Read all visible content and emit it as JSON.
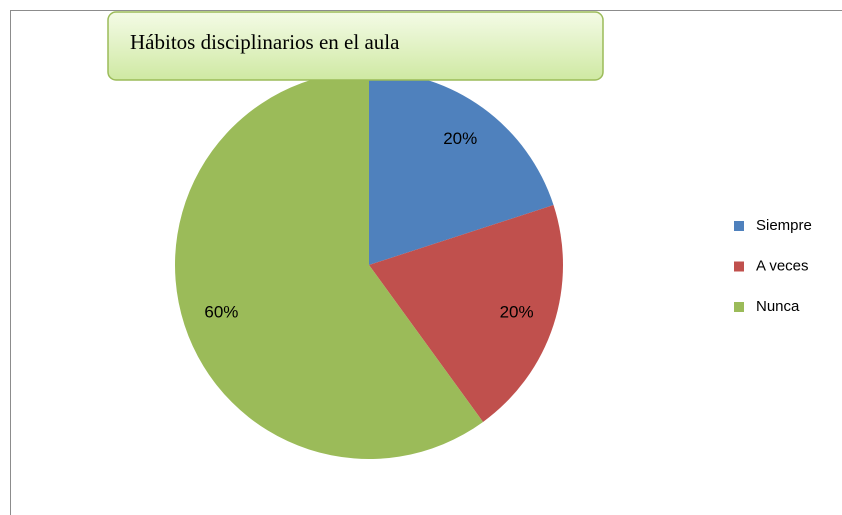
{
  "chart_data": {
    "type": "pie",
    "title": "Hábitos disciplinarios en el aula",
    "categories": [
      "Siempre",
      "A veces",
      "Nunca"
    ],
    "values": [
      20,
      20,
      60
    ],
    "value_labels": [
      "20%",
      "20%",
      "60%"
    ],
    "colors": [
      "#4F81BD",
      "#C0504D",
      "#9BBB59"
    ],
    "legend": "right"
  }
}
